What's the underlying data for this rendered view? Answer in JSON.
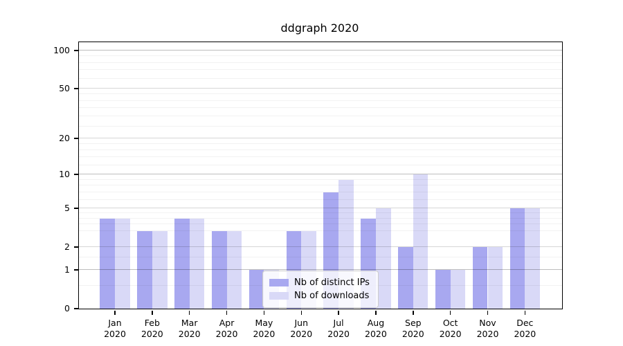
{
  "chart_data": {
    "type": "bar",
    "title": "ddgraph 2020",
    "categories": [
      "Jan 2020",
      "Feb 2020",
      "Mar 2020",
      "Apr 2020",
      "May 2020",
      "Jun 2020",
      "Jul 2020",
      "Aug 2020",
      "Sep 2020",
      "Oct 2020",
      "Nov 2020",
      "Dec 2020"
    ],
    "series": [
      {
        "name": "Nb of distinct IPs",
        "color": "#a8a8f0",
        "values": [
          4,
          3,
          4,
          3,
          1,
          3,
          7,
          4,
          2,
          1,
          2,
          5
        ]
      },
      {
        "name": "Nb of downloads",
        "color": "#d9d9f7",
        "values": [
          4,
          3,
          4,
          3,
          1,
          3,
          9,
          5,
          10,
          1,
          2,
          5
        ]
      }
    ],
    "yscale": "log10(value+1)",
    "ylim": [
      0,
      116
    ],
    "y_ticks": [
      100,
      50,
      20,
      10,
      5,
      2,
      1,
      0
    ],
    "y_decade_lines": [
      1,
      10,
      100
    ],
    "y_minor_gridlines": [
      0.5,
      1.5,
      3,
      3.5,
      4,
      4.5,
      6,
      7,
      8,
      9,
      12,
      14,
      16,
      18,
      25,
      30,
      35,
      40,
      45,
      60,
      70,
      80,
      90
    ],
    "grid": true,
    "legend_position": "lower center"
  },
  "colors": {
    "background": "#ffffff",
    "axis": "#000000",
    "series1": "#a8a8f0",
    "series2": "#d9d9f7",
    "legend_border": "#cccccc"
  }
}
